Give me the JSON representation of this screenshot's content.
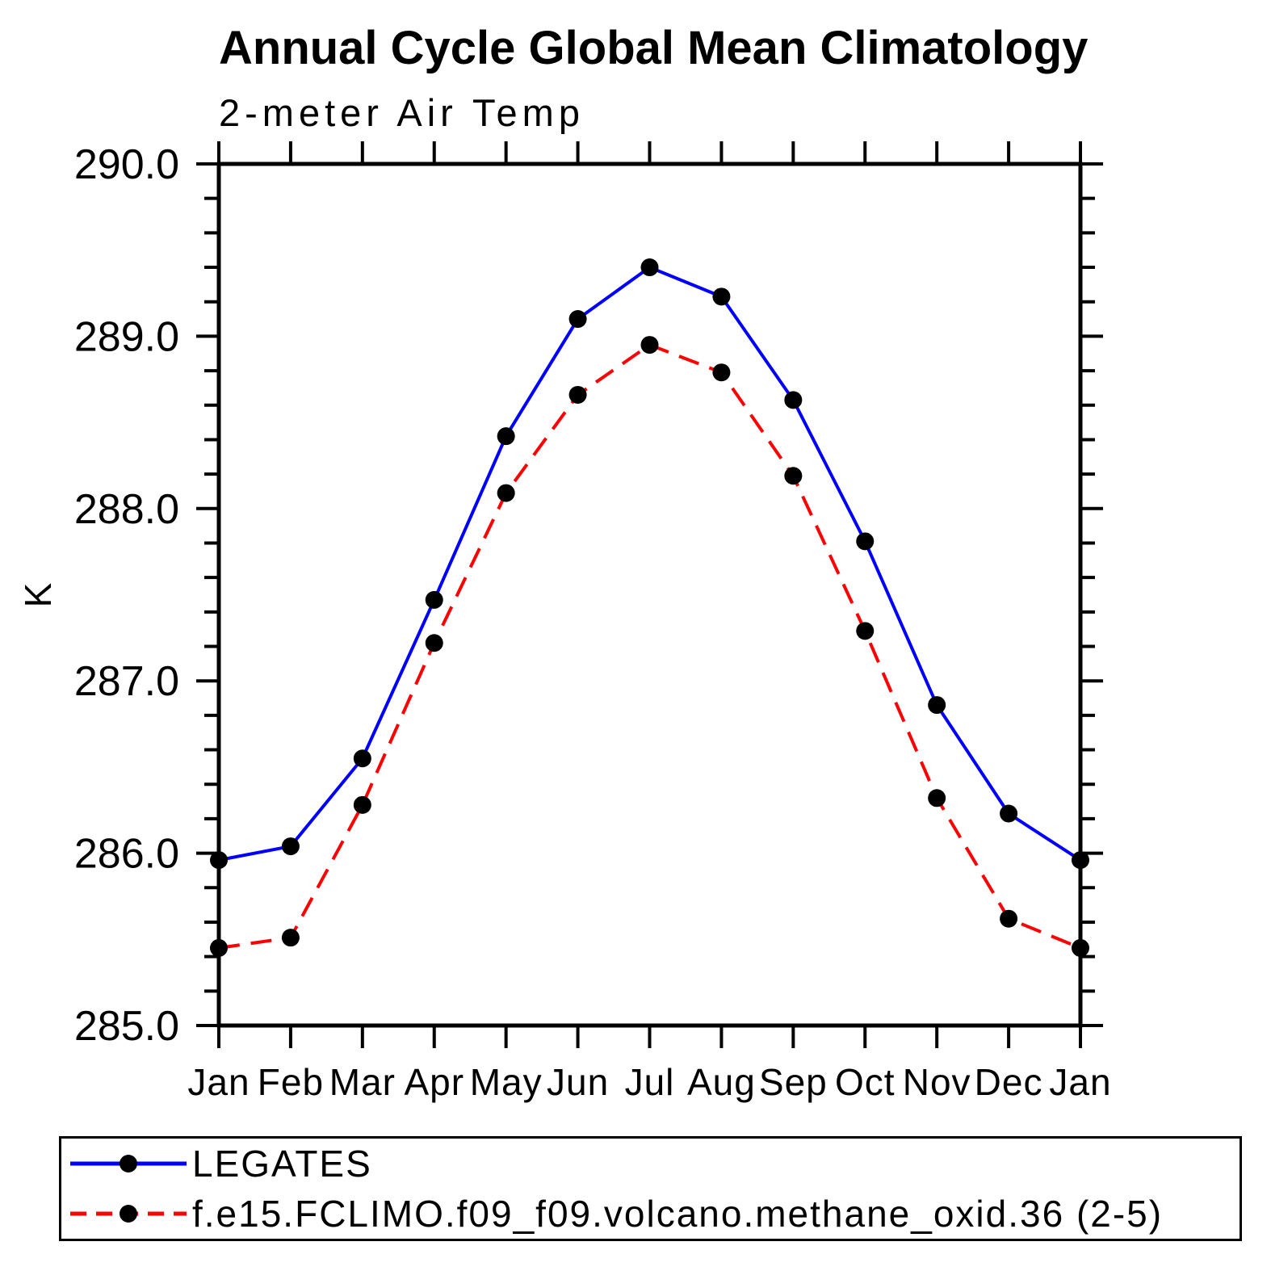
{
  "title": "Annual Cycle Global Mean Climatology",
  "subtitle": "2-meter Air Temp",
  "ylabel": "K",
  "legend": {
    "items": [
      {
        "label": "LEGATES",
        "color": "#0000ff",
        "style": "solid",
        "marker": "circle",
        "marker_color": "#000000"
      },
      {
        "label": "f.e15.FCLIMO.f09_f09.volcano.methane_oxid.36 (2-5)",
        "color": "#ff0000",
        "style": "dashed",
        "marker": "circle",
        "marker_color": "#000000"
      }
    ]
  },
  "chart_data": {
    "type": "line",
    "title": "Annual Cycle Global Mean Climatology",
    "subtitle": "2-meter Air Temp",
    "xlabel": "",
    "ylabel": "K",
    "categories": [
      "Jan",
      "Feb",
      "Mar",
      "Apr",
      "May",
      "Jun",
      "Jul",
      "Aug",
      "Sep",
      "Oct",
      "Nov",
      "Dec",
      "Jan"
    ],
    "series": [
      {
        "name": "LEGATES",
        "color": "#0000ff",
        "style": "solid",
        "marker": "circle",
        "marker_color": "#000000",
        "values": [
          285.96,
          286.04,
          286.55,
          287.47,
          288.42,
          289.1,
          289.4,
          289.23,
          288.63,
          287.81,
          286.86,
          286.23,
          285.96
        ]
      },
      {
        "name": "f.e15.FCLIMO.f09_f09.volcano.methane_oxid.36 (2-5)",
        "color": "#ff0000",
        "style": "dashed",
        "marker": "circle",
        "marker_color": "#000000",
        "values": [
          285.45,
          285.51,
          286.28,
          287.22,
          288.09,
          288.66,
          288.95,
          288.79,
          288.19,
          287.29,
          286.32,
          285.62,
          285.45
        ]
      }
    ],
    "ylim": [
      285.0,
      290.0
    ],
    "ytick_major": 1.0,
    "ytick_minor": 0.2,
    "ytick_labels": [
      "285.0",
      "286.0",
      "287.0",
      "288.0",
      "289.0",
      "290.0"
    ],
    "grid": false,
    "legend_position": "bottom"
  }
}
